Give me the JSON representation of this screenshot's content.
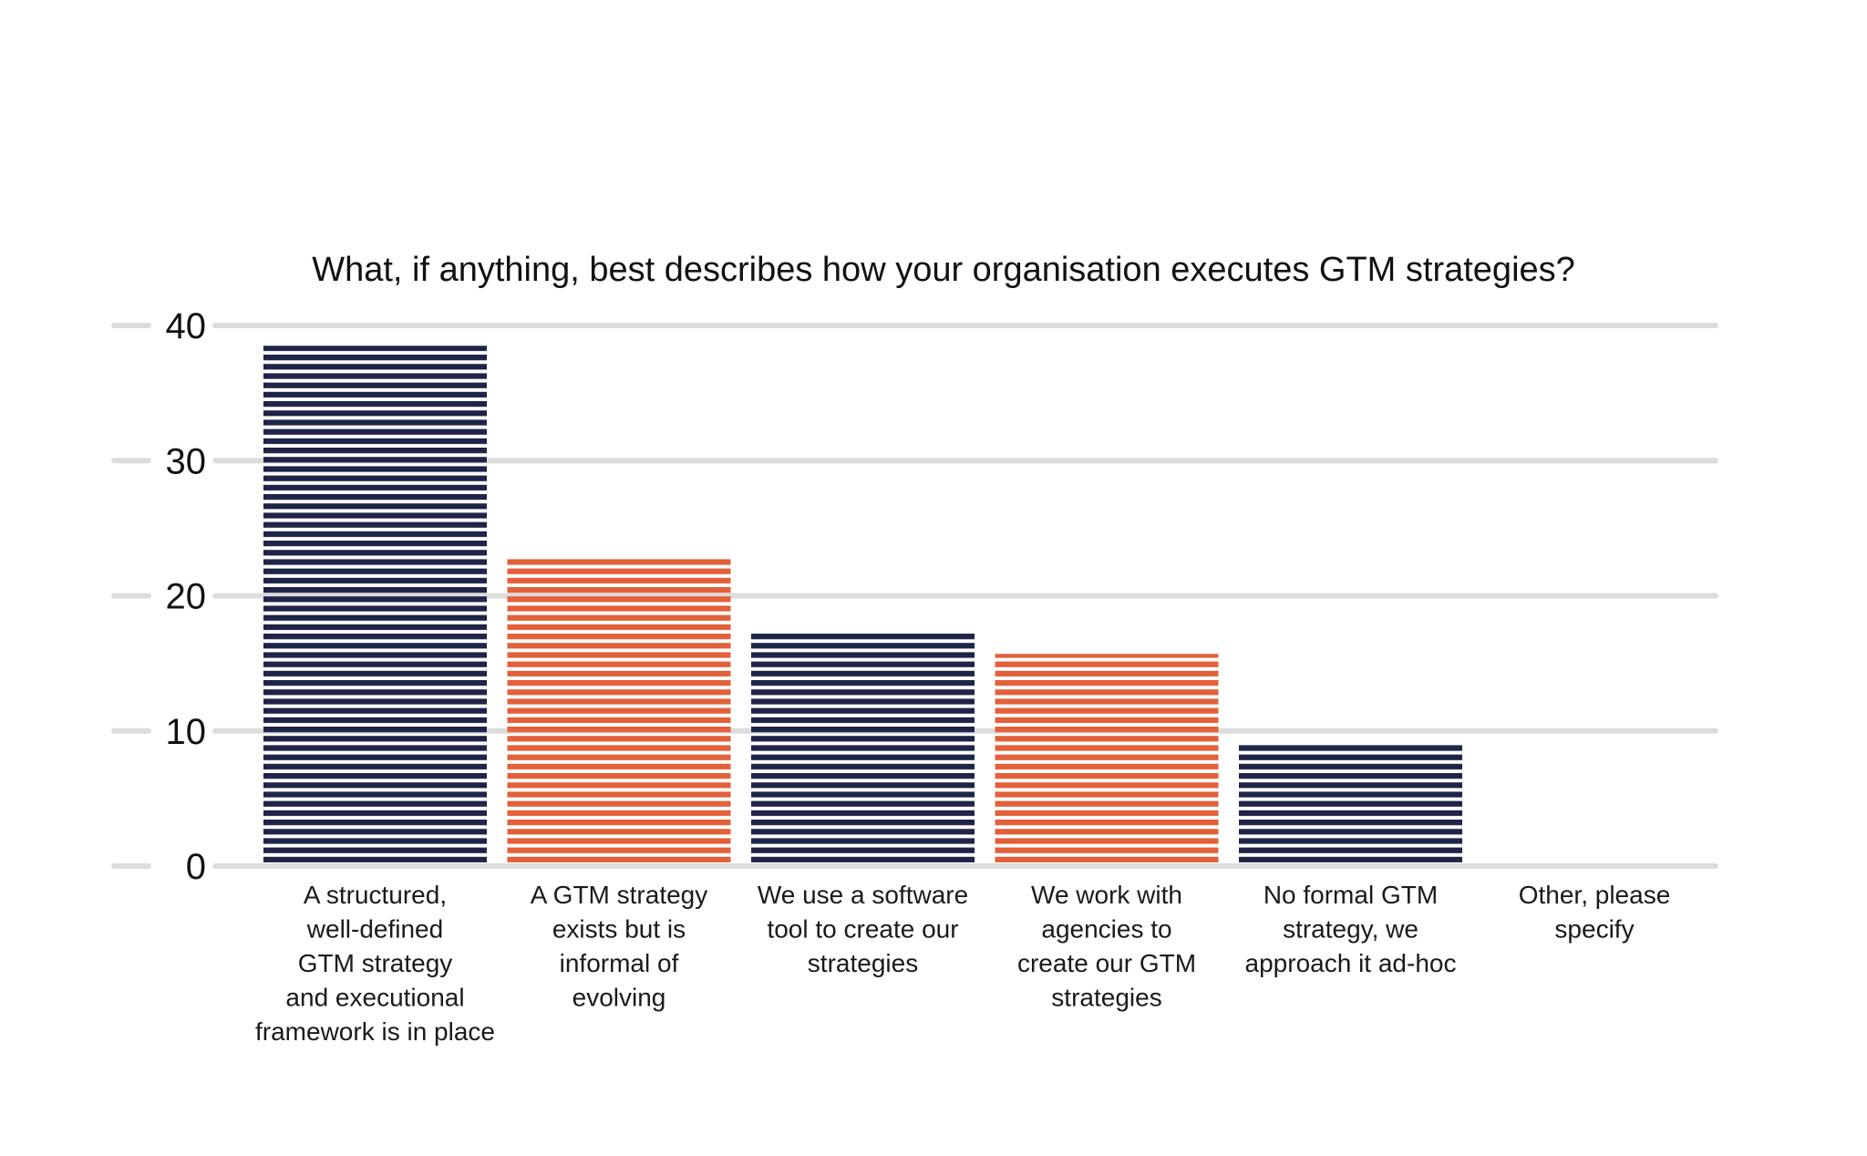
{
  "chart_data": {
    "type": "bar",
    "title": "What, if anything, best describes how your organisation executes GTM strategies?",
    "xlabel": "",
    "ylabel": "",
    "ylim": [
      0,
      40
    ],
    "yticks": [
      0,
      10,
      20,
      30,
      40
    ],
    "grid": true,
    "legend": "none",
    "categories": [
      [
        "A structured,",
        "well-defined",
        "GTM strategy",
        "and executional",
        "framework is in place"
      ],
      [
        "A GTM strategy",
        "exists but is",
        "informal of",
        "evolving"
      ],
      [
        "We use a software",
        "tool to create our",
        "strategies"
      ],
      [
        "We work with",
        "agencies to",
        "create our GTM",
        "strategies"
      ],
      [
        "No formal GTM",
        "strategy, we",
        "approach it ad-hoc"
      ],
      [
        "Other, please",
        "specify"
      ]
    ],
    "values": [
      38.5,
      22.8,
      17.2,
      15.7,
      9.2,
      0
    ],
    "bar_colors": [
      "#1f2448",
      "#e2603a",
      "#1f2448",
      "#e2603a",
      "#1f2448",
      "#1f2448"
    ],
    "grid_color": "#dcdcdc"
  }
}
